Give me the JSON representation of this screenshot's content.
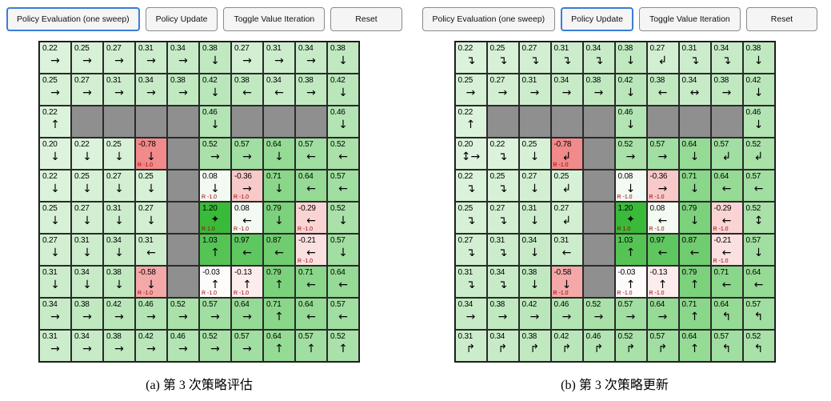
{
  "toolbar": {
    "buttons": [
      "Policy Evaluation (one sweep)",
      "Policy Update",
      "Toggle Value Iteration",
      "Reset"
    ],
    "button_names": [
      "policy-evaluation-button",
      "policy-update-button",
      "toggle-value-iteration-button",
      "reset-button"
    ]
  },
  "goal_marker": "✦",
  "colors": {
    "active_button_border": "#3b7dd8",
    "button_background": "#f5f5f5",
    "wall": "#8f8f8f",
    "positive_value_base": "#28b428",
    "negative_value_base": "#eb5a5a",
    "reward_text": "#990000",
    "grid_line": "#2a2a2a"
  },
  "panels": [
    {
      "name": "policy-evaluation-panel",
      "active_button": 0,
      "caption": "(a) 第 3 次策略评估",
      "grid": [
        [
          {
            "v": "0.22",
            "a": "→"
          },
          {
            "v": "0.25",
            "a": "→"
          },
          {
            "v": "0.27",
            "a": "→"
          },
          {
            "v": "0.31",
            "a": "→"
          },
          {
            "v": "0.34",
            "a": "→"
          },
          {
            "v": "0.38",
            "a": "↓"
          },
          {
            "v": "0.27",
            "a": "→"
          },
          {
            "v": "0.31",
            "a": "→"
          },
          {
            "v": "0.34",
            "a": "→"
          },
          {
            "v": "0.38",
            "a": "↓"
          }
        ],
        [
          {
            "v": "0.25",
            "a": "→"
          },
          {
            "v": "0.27",
            "a": "→"
          },
          {
            "v": "0.31",
            "a": "→"
          },
          {
            "v": "0.34",
            "a": "→"
          },
          {
            "v": "0.38",
            "a": "→"
          },
          {
            "v": "0.42",
            "a": "↓"
          },
          {
            "v": "0.38",
            "a": "←"
          },
          {
            "v": "0.34",
            "a": "←"
          },
          {
            "v": "0.38",
            "a": "→"
          },
          {
            "v": "0.42",
            "a": "↓"
          }
        ],
        [
          {
            "v": "0.22",
            "a": "↑"
          },
          {
            "t": "wall"
          },
          {
            "t": "wall"
          },
          {
            "t": "wall"
          },
          {
            "t": "wall"
          },
          {
            "v": "0.46",
            "a": "↓"
          },
          {
            "t": "wall"
          },
          {
            "t": "wall"
          },
          {
            "t": "wall"
          },
          {
            "v": "0.46",
            "a": "↓"
          }
        ],
        [
          {
            "v": "0.20",
            "a": "↓"
          },
          {
            "v": "0.22",
            "a": "↓"
          },
          {
            "v": "0.25",
            "a": "↓"
          },
          {
            "v": "-0.78",
            "a": "↓",
            "r": "R -1.0"
          },
          {
            "t": "wall"
          },
          {
            "v": "0.52",
            "a": "→"
          },
          {
            "v": "0.57",
            "a": "→"
          },
          {
            "v": "0.64",
            "a": "↓"
          },
          {
            "v": "0.57",
            "a": "←"
          },
          {
            "v": "0.52",
            "a": "←"
          }
        ],
        [
          {
            "v": "0.22",
            "a": "↓"
          },
          {
            "v": "0.25",
            "a": "↓"
          },
          {
            "v": "0.27",
            "a": "↓"
          },
          {
            "v": "0.25",
            "a": "↓"
          },
          {
            "t": "wall"
          },
          {
            "v": "0.08",
            "a": "↓",
            "r": "R -1.0"
          },
          {
            "v": "-0.36",
            "a": "→",
            "r": "R -1.0"
          },
          {
            "v": "0.71",
            "a": "↓"
          },
          {
            "v": "0.64",
            "a": "←"
          },
          {
            "v": "0.57",
            "a": "←"
          }
        ],
        [
          {
            "v": "0.25",
            "a": "↓"
          },
          {
            "v": "0.27",
            "a": "↓"
          },
          {
            "v": "0.31",
            "a": "↓"
          },
          {
            "v": "0.27",
            "a": "↓"
          },
          {
            "t": "wall"
          },
          {
            "v": "1.20",
            "goal": true,
            "r": "R 1.0"
          },
          {
            "v": "0.08",
            "a": "←",
            "r": "R -1.0"
          },
          {
            "v": "0.79",
            "a": "↓"
          },
          {
            "v": "-0.29",
            "a": "←",
            "r": "R -1.0"
          },
          {
            "v": "0.52",
            "a": "↓"
          }
        ],
        [
          {
            "v": "0.27",
            "a": "↓"
          },
          {
            "v": "0.31",
            "a": "↓"
          },
          {
            "v": "0.34",
            "a": "↓"
          },
          {
            "v": "0.31",
            "a": "←"
          },
          {
            "t": "wall"
          },
          {
            "v": "1.03",
            "a": "↑"
          },
          {
            "v": "0.97",
            "a": "←"
          },
          {
            "v": "0.87",
            "a": "←"
          },
          {
            "v": "-0.21",
            "a": "←",
            "r": "R -1.0"
          },
          {
            "v": "0.57",
            "a": "↓"
          }
        ],
        [
          {
            "v": "0.31",
            "a": "↓"
          },
          {
            "v": "0.34",
            "a": "↓"
          },
          {
            "v": "0.38",
            "a": "↓"
          },
          {
            "v": "-0.58",
            "a": "↓",
            "r": "R -1.0"
          },
          {
            "t": "wall"
          },
          {
            "v": "-0.03",
            "a": "↑",
            "r": "R -1.0"
          },
          {
            "v": "-0.13",
            "a": "↑",
            "r": "R -1.0"
          },
          {
            "v": "0.79",
            "a": "↑"
          },
          {
            "v": "0.71",
            "a": "←"
          },
          {
            "v": "0.64",
            "a": "←"
          }
        ],
        [
          {
            "v": "0.34",
            "a": "→"
          },
          {
            "v": "0.38",
            "a": "→"
          },
          {
            "v": "0.42",
            "a": "→"
          },
          {
            "v": "0.46",
            "a": "→"
          },
          {
            "v": "0.52",
            "a": "→"
          },
          {
            "v": "0.57",
            "a": "→"
          },
          {
            "v": "0.64",
            "a": "→"
          },
          {
            "v": "0.71",
            "a": "↑"
          },
          {
            "v": "0.64",
            "a": "←"
          },
          {
            "v": "0.57",
            "a": "←"
          }
        ],
        [
          {
            "v": "0.31",
            "a": "→"
          },
          {
            "v": "0.34",
            "a": "→"
          },
          {
            "v": "0.38",
            "a": "→"
          },
          {
            "v": "0.42",
            "a": "→"
          },
          {
            "v": "0.46",
            "a": "→"
          },
          {
            "v": "0.52",
            "a": "→"
          },
          {
            "v": "0.57",
            "a": "→"
          },
          {
            "v": "0.64",
            "a": "↑"
          },
          {
            "v": "0.57",
            "a": "↑"
          },
          {
            "v": "0.52",
            "a": "↑"
          }
        ]
      ]
    },
    {
      "name": "policy-update-panel",
      "active_button": 1,
      "caption": "(b) 第 3 次策略更新",
      "grid": [
        [
          {
            "v": "0.22",
            "a": "↴"
          },
          {
            "v": "0.25",
            "a": "↴"
          },
          {
            "v": "0.27",
            "a": "↴"
          },
          {
            "v": "0.31",
            "a": "↴"
          },
          {
            "v": "0.34",
            "a": "↴"
          },
          {
            "v": "0.38",
            "a": "↓"
          },
          {
            "v": "0.27",
            "a": "↲"
          },
          {
            "v": "0.31",
            "a": "↴"
          },
          {
            "v": "0.34",
            "a": "↴"
          },
          {
            "v": "0.38",
            "a": "↓"
          }
        ],
        [
          {
            "v": "0.25",
            "a": "→"
          },
          {
            "v": "0.27",
            "a": "→"
          },
          {
            "v": "0.31",
            "a": "→"
          },
          {
            "v": "0.34",
            "a": "→"
          },
          {
            "v": "0.38",
            "a": "→"
          },
          {
            "v": "0.42",
            "a": "↓"
          },
          {
            "v": "0.38",
            "a": "←"
          },
          {
            "v": "0.34",
            "a": "↔"
          },
          {
            "v": "0.38",
            "a": "→"
          },
          {
            "v": "0.42",
            "a": "↓"
          }
        ],
        [
          {
            "v": "0.22",
            "a": "↑"
          },
          {
            "t": "wall"
          },
          {
            "t": "wall"
          },
          {
            "t": "wall"
          },
          {
            "t": "wall"
          },
          {
            "v": "0.46",
            "a": "↓"
          },
          {
            "t": "wall"
          },
          {
            "t": "wall"
          },
          {
            "t": "wall"
          },
          {
            "v": "0.46",
            "a": "↓"
          }
        ],
        [
          {
            "v": "0.20",
            "a": "↕→"
          },
          {
            "v": "0.22",
            "a": "↴"
          },
          {
            "v": "0.25",
            "a": "↓"
          },
          {
            "v": "-0.78",
            "a": "↲",
            "r": "R -1.0"
          },
          {
            "t": "wall"
          },
          {
            "v": "0.52",
            "a": "→"
          },
          {
            "v": "0.57",
            "a": "→"
          },
          {
            "v": "0.64",
            "a": "↓"
          },
          {
            "v": "0.57",
            "a": "↲"
          },
          {
            "v": "0.52",
            "a": "↲"
          }
        ],
        [
          {
            "v": "0.22",
            "a": "↴"
          },
          {
            "v": "0.25",
            "a": "↴"
          },
          {
            "v": "0.27",
            "a": "↓"
          },
          {
            "v": "0.25",
            "a": "↲"
          },
          {
            "t": "wall"
          },
          {
            "v": "0.08",
            "a": "↓",
            "r": "R -1.0"
          },
          {
            "v": "-0.36",
            "a": "→",
            "r": "R -1.0"
          },
          {
            "v": "0.71",
            "a": "↓"
          },
          {
            "v": "0.64",
            "a": "←"
          },
          {
            "v": "0.57",
            "a": "←"
          }
        ],
        [
          {
            "v": "0.25",
            "a": "↴"
          },
          {
            "v": "0.27",
            "a": "↴"
          },
          {
            "v": "0.31",
            "a": "↓"
          },
          {
            "v": "0.27",
            "a": "↲"
          },
          {
            "t": "wall"
          },
          {
            "v": "1.20",
            "goal": true,
            "r": "R 1.0"
          },
          {
            "v": "0.08",
            "a": "←",
            "r": "R -1.0"
          },
          {
            "v": "0.79",
            "a": "↓"
          },
          {
            "v": "-0.29",
            "a": "←",
            "r": "R -1.0"
          },
          {
            "v": "0.52",
            "a": "↕"
          }
        ],
        [
          {
            "v": "0.27",
            "a": "↴"
          },
          {
            "v": "0.31",
            "a": "↴"
          },
          {
            "v": "0.34",
            "a": "↓"
          },
          {
            "v": "0.31",
            "a": "←"
          },
          {
            "t": "wall"
          },
          {
            "v": "1.03",
            "a": "↑"
          },
          {
            "v": "0.97",
            "a": "←"
          },
          {
            "v": "0.87",
            "a": "←"
          },
          {
            "v": "-0.21",
            "a": "←",
            "r": "R -1.0"
          },
          {
            "v": "0.57",
            "a": "↓"
          }
        ],
        [
          {
            "v": "0.31",
            "a": "↴"
          },
          {
            "v": "0.34",
            "a": "↴"
          },
          {
            "v": "0.38",
            "a": "↓"
          },
          {
            "v": "-0.58",
            "a": "↓",
            "r": "R -1.0"
          },
          {
            "t": "wall"
          },
          {
            "v": "-0.03",
            "a": "↑",
            "r": "R -1.0"
          },
          {
            "v": "-0.13",
            "a": "↑",
            "r": "R -1.0"
          },
          {
            "v": "0.79",
            "a": "↑"
          },
          {
            "v": "0.71",
            "a": "←"
          },
          {
            "v": "0.64",
            "a": "←"
          }
        ],
        [
          {
            "v": "0.34",
            "a": "→"
          },
          {
            "v": "0.38",
            "a": "→"
          },
          {
            "v": "0.42",
            "a": "→"
          },
          {
            "v": "0.46",
            "a": "→"
          },
          {
            "v": "0.52",
            "a": "→"
          },
          {
            "v": "0.57",
            "a": "→"
          },
          {
            "v": "0.64",
            "a": "→"
          },
          {
            "v": "0.71",
            "a": "↑"
          },
          {
            "v": "0.64",
            "a": "↰"
          },
          {
            "v": "0.57",
            "a": "↰"
          }
        ],
        [
          {
            "v": "0.31",
            "a": "↱"
          },
          {
            "v": "0.34",
            "a": "↱"
          },
          {
            "v": "0.38",
            "a": "↱"
          },
          {
            "v": "0.42",
            "a": "↱"
          },
          {
            "v": "0.46",
            "a": "↱"
          },
          {
            "v": "0.52",
            "a": "↱"
          },
          {
            "v": "0.57",
            "a": "↱"
          },
          {
            "v": "0.64",
            "a": "↑"
          },
          {
            "v": "0.57",
            "a": "↰"
          },
          {
            "v": "0.52",
            "a": "↰"
          }
        ]
      ]
    }
  ]
}
